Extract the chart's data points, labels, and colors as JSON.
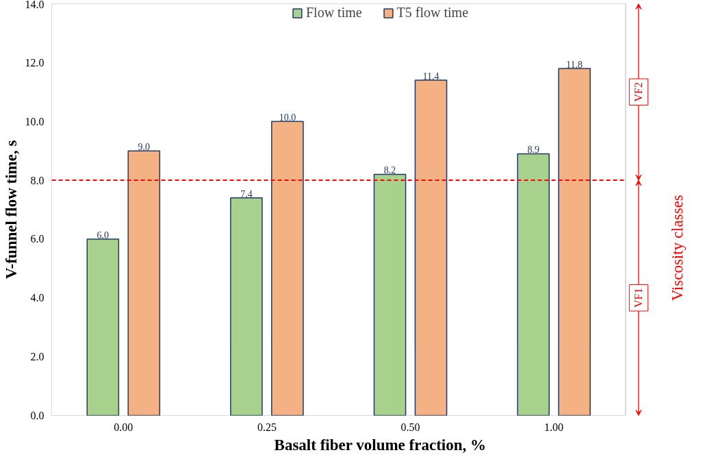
{
  "chart_data": {
    "type": "bar",
    "xlabel": "Basalt fiber volume fraction, %",
    "ylabel": "V-funnel flow time, s",
    "categories": [
      "0.00",
      "0.25",
      "0.50",
      "1.00"
    ],
    "series": [
      {
        "name": "Flow time",
        "color": "#a9d18e",
        "values": [
          6.0,
          7.4,
          8.2,
          8.9
        ],
        "value_labels": [
          "6.0",
          "7.4",
          "8.2",
          "8.9"
        ]
      },
      {
        "name": "T5 flow time",
        "color": "#f4b183",
        "values": [
          9.0,
          10.0,
          11.4,
          11.8
        ],
        "value_labels": [
          "9.0",
          "10.0",
          "11.4",
          "11.8"
        ]
      }
    ],
    "ylim": [
      0,
      14
    ],
    "yticks": [
      {
        "value": 0,
        "label": "0.0"
      },
      {
        "value": 2,
        "label": "2.0"
      },
      {
        "value": 4,
        "label": "4.0"
      },
      {
        "value": 6,
        "label": "6.0"
      },
      {
        "value": 8,
        "label": "8.0"
      },
      {
        "value": 10,
        "label": "10.0"
      },
      {
        "value": 12,
        "label": "12.0"
      },
      {
        "value": 14,
        "label": "14.0"
      }
    ],
    "grid": false,
    "legend": "top",
    "ref_lines": [
      {
        "axis": "y",
        "value": 8,
        "color": "#ff0000",
        "line_style": "dashed"
      }
    ],
    "annotations": [
      "VF1",
      "VF2",
      "Viscosity classes"
    ]
  }
}
